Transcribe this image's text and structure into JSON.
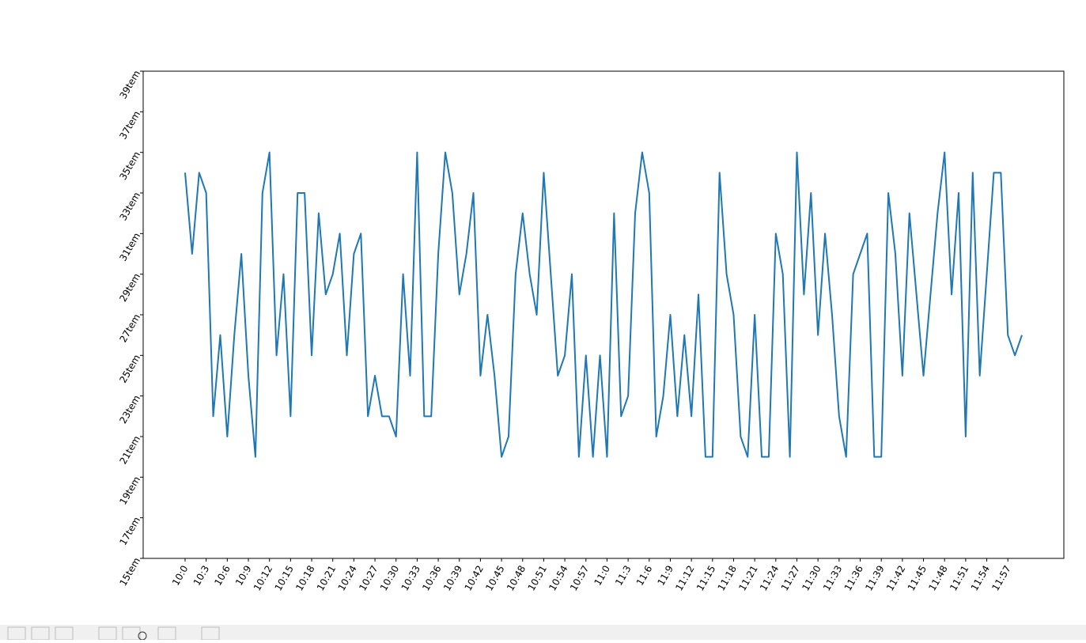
{
  "chart_data": {
    "type": "line",
    "categories": [
      "10:0",
      null,
      null,
      "10:3",
      null,
      null,
      "10:6",
      null,
      null,
      "10:9",
      null,
      null,
      "10:12",
      null,
      null,
      "10:15",
      null,
      null,
      "10:18",
      null,
      null,
      "10:21",
      null,
      null,
      "10:24",
      null,
      null,
      "10:27",
      null,
      null,
      "10:30",
      null,
      null,
      "10:33",
      null,
      null,
      "10:36",
      null,
      null,
      "10:39",
      null,
      null,
      "10:42",
      null,
      null,
      "10:45",
      null,
      null,
      "10:48",
      null,
      null,
      "10:51",
      null,
      null,
      "10:54",
      null,
      null,
      "10:57",
      null,
      null,
      "11:0",
      null,
      null,
      "11:3",
      null,
      null,
      "11:6",
      null,
      null,
      "11:9",
      null,
      null,
      "11:12",
      null,
      null,
      "11:15",
      null,
      null,
      "11:18",
      null,
      null,
      "11:21",
      null,
      null,
      "11:24",
      null,
      null,
      "11:27",
      null,
      null,
      "11:30",
      null,
      null,
      "11:33",
      null,
      null,
      "11:36",
      null,
      null,
      "11:39",
      null,
      null,
      "11:42",
      null,
      null,
      "11:45",
      null,
      null,
      "11:48",
      null,
      null,
      "11:51",
      null,
      null,
      "11:54",
      null,
      null,
      "11:57",
      null,
      null
    ],
    "values": [
      34,
      30,
      34,
      33,
      22,
      26,
      21,
      26,
      30,
      24,
      20,
      33,
      35,
      25,
      29,
      22,
      33,
      33,
      25,
      32,
      28,
      29,
      31,
      25,
      30,
      31,
      22,
      24,
      22,
      22,
      21,
      29,
      24,
      35,
      22,
      22,
      30,
      35,
      33,
      28,
      30,
      33,
      24,
      27,
      24,
      20,
      21,
      29,
      32,
      29,
      27,
      34,
      29,
      24,
      25,
      29,
      20,
      25,
      20,
      25,
      20,
      32,
      22,
      23,
      32,
      35,
      33,
      21,
      23,
      27,
      22,
      26,
      22,
      28,
      20,
      20,
      34,
      29,
      27,
      21,
      20,
      27,
      20,
      20,
      31,
      29,
      20,
      35,
      28,
      33,
      26,
      31,
      27,
      22,
      20,
      29,
      30,
      31,
      20,
      20,
      33,
      30,
      24,
      32,
      28,
      24,
      28,
      32,
      35,
      28,
      33,
      21,
      34,
      24,
      29,
      34,
      34,
      26,
      25,
      26
    ],
    "color": "#1f77b4",
    "ylim": [
      15,
      39
    ],
    "yticks": [
      {
        "value": 15,
        "label": "15tem"
      },
      {
        "value": 17,
        "label": "17tem"
      },
      {
        "value": 19,
        "label": "19tem"
      },
      {
        "value": 21,
        "label": "21tem"
      },
      {
        "value": 23,
        "label": "23tem"
      },
      {
        "value": 25,
        "label": "25tem"
      },
      {
        "value": 27,
        "label": "27tem"
      },
      {
        "value": 29,
        "label": "29tem"
      },
      {
        "value": 31,
        "label": "31tem"
      },
      {
        "value": 33,
        "label": "33tem"
      },
      {
        "value": 35,
        "label": "35tem"
      },
      {
        "value": 37,
        "label": "37tem"
      },
      {
        "value": 39,
        "label": "39tem"
      }
    ]
  }
}
